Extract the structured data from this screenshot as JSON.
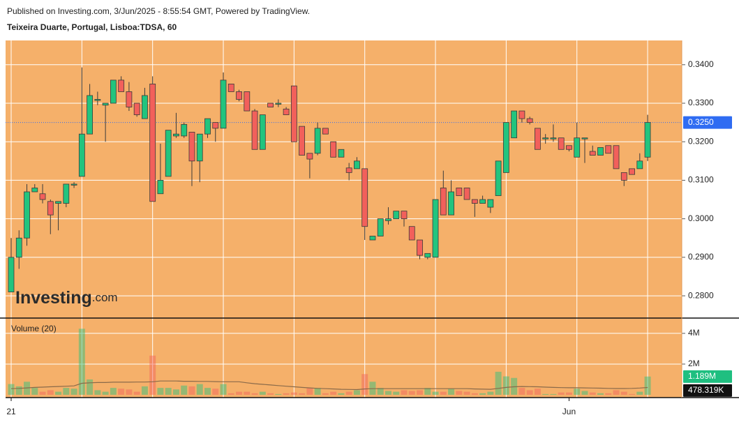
{
  "chart_data": {
    "type": "candlestick",
    "subtitle": "Published on Investing.com, 3/Jun/2025 - 8:55:54 GMT, Powered by TradingView.",
    "title": "Teixeira Duarte, Portugal, Lisboa:TDSA, 60",
    "watermark": {
      "brand": "Investing",
      "suffix": ".com"
    },
    "categories": [
      "21",
      null,
      null,
      null,
      null,
      null,
      null,
      null,
      null,
      null,
      null,
      null,
      null,
      null,
      null,
      null,
      null,
      null,
      null,
      null,
      null,
      null,
      null,
      null,
      null,
      null,
      null,
      null,
      null,
      null,
      null,
      null,
      null,
      null,
      null,
      null,
      null,
      null,
      null,
      null,
      null,
      null,
      null,
      null,
      null,
      null,
      null,
      null,
      null,
      null,
      null,
      null,
      null,
      null,
      null,
      null,
      null,
      null,
      null,
      null,
      null,
      null,
      null,
      null,
      null,
      null,
      null,
      null,
      null,
      null,
      null,
      "Jun",
      null,
      null,
      null,
      null,
      null,
      null,
      null,
      null,
      null,
      null
    ],
    "open": [
      0.281,
      0.29,
      0.295,
      0.307,
      0.3065,
      0.3045,
      0.304,
      0.304,
      0.309,
      0.311,
      0.322,
      0.331,
      0.3295,
      0.33,
      0.336,
      0.333,
      0.33,
      0.326,
      0.335,
      0.3065,
      0.311,
      0.3215,
      0.3215,
      0.3225,
      0.315,
      0.322,
      0.325,
      0.3235,
      0.335,
      0.333,
      0.333,
      0.328,
      0.318,
      0.33,
      0.33,
      0.3285,
      0.3345,
      0.324,
      0.317,
      0.317,
      0.3235,
      0.32,
      0.316,
      0.3132,
      0.313,
      0.313,
      0.2945,
      0.2955,
      0.2995,
      0.3,
      0.302,
      0.298,
      0.2945,
      0.29,
      0.29,
      0.308,
      0.301,
      0.308,
      0.308,
      0.305,
      0.304,
      0.303,
      0.306,
      0.312,
      0.321,
      0.328,
      0.326,
      0.3235,
      0.321,
      0.321,
      0.321,
      0.319,
      0.316,
      0.321,
      0.3175,
      0.3165,
      0.319,
      0.319,
      0.312,
      0.313,
      0.313,
      0.316
    ],
    "high": [
      0.295,
      0.297,
      0.309,
      0.309,
      0.309,
      0.305,
      0.3045,
      0.309,
      0.3095,
      0.3393,
      0.335,
      0.333,
      0.33,
      0.336,
      0.337,
      0.3355,
      0.33,
      0.334,
      0.337,
      0.3195,
      0.323,
      0.3275,
      0.325,
      0.3225,
      0.322,
      0.326,
      0.325,
      0.338,
      0.335,
      0.3335,
      0.333,
      0.3285,
      0.327,
      0.33,
      0.331,
      0.329,
      0.3345,
      0.324,
      0.317,
      0.325,
      0.3235,
      0.32,
      0.318,
      0.3145,
      0.316,
      0.313,
      0.2955,
      0.3,
      0.303,
      0.302,
      0.302,
      0.298,
      0.2945,
      0.291,
      0.305,
      0.3125,
      0.31,
      0.308,
      0.308,
      0.305,
      0.306,
      0.305,
      0.315,
      0.325,
      0.328,
      0.328,
      0.3265,
      0.3235,
      0.322,
      0.3245,
      0.321,
      0.319,
      0.325,
      0.321,
      0.319,
      0.3185,
      0.319,
      0.319,
      0.312,
      0.313,
      0.317,
      0.327
    ],
    "low": [
      0.281,
      0.287,
      0.293,
      0.307,
      0.304,
      0.296,
      0.297,
      0.303,
      0.308,
      0.311,
      0.322,
      0.3295,
      0.32,
      0.33,
      0.333,
      0.328,
      0.3265,
      0.326,
      0.3045,
      0.3065,
      0.311,
      0.321,
      0.321,
      0.3085,
      0.3095,
      0.321,
      0.32,
      0.3235,
      0.333,
      0.3305,
      0.328,
      0.318,
      0.318,
      0.329,
      0.329,
      0.327,
      0.32,
      0.3165,
      0.3105,
      0.3165,
      0.322,
      0.316,
      0.316,
      0.31,
      0.313,
      0.2945,
      0.2945,
      0.2955,
      0.2985,
      0.3,
      0.298,
      0.2945,
      0.2895,
      0.2895,
      0.29,
      0.301,
      0.301,
      0.306,
      0.305,
      0.3005,
      0.304,
      0.3015,
      0.306,
      0.312,
      0.321,
      0.325,
      0.3245,
      0.318,
      0.3195,
      0.32,
      0.318,
      0.3175,
      0.316,
      0.3145,
      0.3165,
      0.3165,
      0.317,
      0.313,
      0.3085,
      0.3115,
      0.313,
      0.315
    ],
    "close": [
      0.29,
      0.295,
      0.307,
      0.308,
      0.305,
      0.301,
      0.3045,
      0.309,
      0.309,
      0.322,
      0.332,
      0.331,
      0.33,
      0.336,
      0.333,
      0.329,
      0.327,
      0.332,
      0.3045,
      0.31,
      0.323,
      0.322,
      0.3245,
      0.315,
      0.322,
      0.326,
      0.3235,
      0.336,
      0.333,
      0.331,
      0.328,
      0.318,
      0.327,
      0.329,
      0.33,
      0.327,
      0.32,
      0.3165,
      0.3155,
      0.3235,
      0.322,
      0.316,
      0.318,
      0.312,
      0.315,
      0.298,
      0.2955,
      0.3,
      0.3,
      0.302,
      0.3,
      0.2945,
      0.2905,
      0.291,
      0.305,
      0.301,
      0.307,
      0.306,
      0.305,
      0.304,
      0.305,
      0.305,
      0.315,
      0.325,
      0.328,
      0.326,
      0.325,
      0.318,
      0.321,
      0.321,
      0.318,
      0.318,
      0.321,
      0.321,
      0.3165,
      0.3185,
      0.317,
      0.313,
      0.31,
      0.3115,
      0.315,
      0.325
    ],
    "up_color": "#22c47e",
    "down_color": "#f2605b",
    "ylim": [
      0.2744,
      0.3463
    ],
    "yticks": [
      {
        "value": 0.28,
        "label": "0.2800"
      },
      {
        "value": 0.29,
        "label": "0.2900"
      },
      {
        "value": 0.3,
        "label": "0.3000"
      },
      {
        "value": 0.31,
        "label": "0.3100"
      },
      {
        "value": 0.32,
        "label": "0.3200"
      },
      {
        "value": 0.33,
        "label": "0.3300"
      },
      {
        "value": 0.34,
        "label": "0.3400"
      }
    ],
    "grid": true,
    "last_price": {
      "value": 0.325,
      "label": "0.3250",
      "color": "#2f6cf2"
    },
    "volume": {
      "title": "Volume (20)",
      "values": [
        700000,
        550000,
        850000,
        450000,
        200000,
        300000,
        200000,
        450000,
        400000,
        4300000,
        1000000,
        300000,
        200000,
        450000,
        400000,
        350000,
        200000,
        550000,
        2550000,
        450000,
        450000,
        350000,
        600000,
        550000,
        700000,
        450000,
        400000,
        700000,
        100000,
        200000,
        200000,
        100000,
        200000,
        100000,
        50000,
        100000,
        150000,
        100000,
        450000,
        450000,
        100000,
        200000,
        100000,
        200000,
        300000,
        1350000,
        850000,
        450000,
        250000,
        200000,
        300000,
        250000,
        300000,
        450000,
        200000,
        200000,
        400000,
        250000,
        200000,
        100000,
        100000,
        200000,
        1500000,
        1200000,
        1100000,
        450000,
        300000,
        400000,
        50000,
        50000,
        150000,
        150000,
        400000,
        250000,
        150000,
        100000,
        100000,
        300000,
        200000,
        50000,
        200000,
        1189000
      ],
      "ma_values": [
        400000,
        420000,
        450000,
        480000,
        500000,
        520000,
        540000,
        560000,
        580000,
        750000,
        780000,
        800000,
        800000,
        820000,
        820000,
        820000,
        830000,
        830000,
        850000,
        900000,
        900000,
        900000,
        880000,
        880000,
        870000,
        870000,
        860000,
        850000,
        850000,
        850000,
        780000,
        720000,
        680000,
        640000,
        600000,
        560000,
        520000,
        480000,
        450000,
        420000,
        400000,
        380000,
        360000,
        350000,
        340000,
        380000,
        400000,
        400000,
        400000,
        400000,
        400000,
        400000,
        400000,
        400000,
        400000,
        400000,
        400000,
        400000,
        400000,
        380000,
        370000,
        360000,
        420000,
        480000,
        520000,
        540000,
        530000,
        520000,
        500000,
        480000,
        470000,
        460000,
        460000,
        450000,
        440000,
        430000,
        420000,
        410000,
        410000,
        420000,
        440000,
        478319
      ],
      "ma_color": "#8a6a4a",
      "ylim": [
        0,
        4950000
      ],
      "yticks": [
        {
          "value": 2000000,
          "label": "2M"
        },
        {
          "value": 4000000,
          "label": "4M"
        }
      ],
      "last_volume": {
        "value": 1189000,
        "label": "1.189M",
        "color": "#1fbf80"
      },
      "last_ma": {
        "value": 478319,
        "label": "478.319K",
        "color": "#111111"
      }
    }
  }
}
